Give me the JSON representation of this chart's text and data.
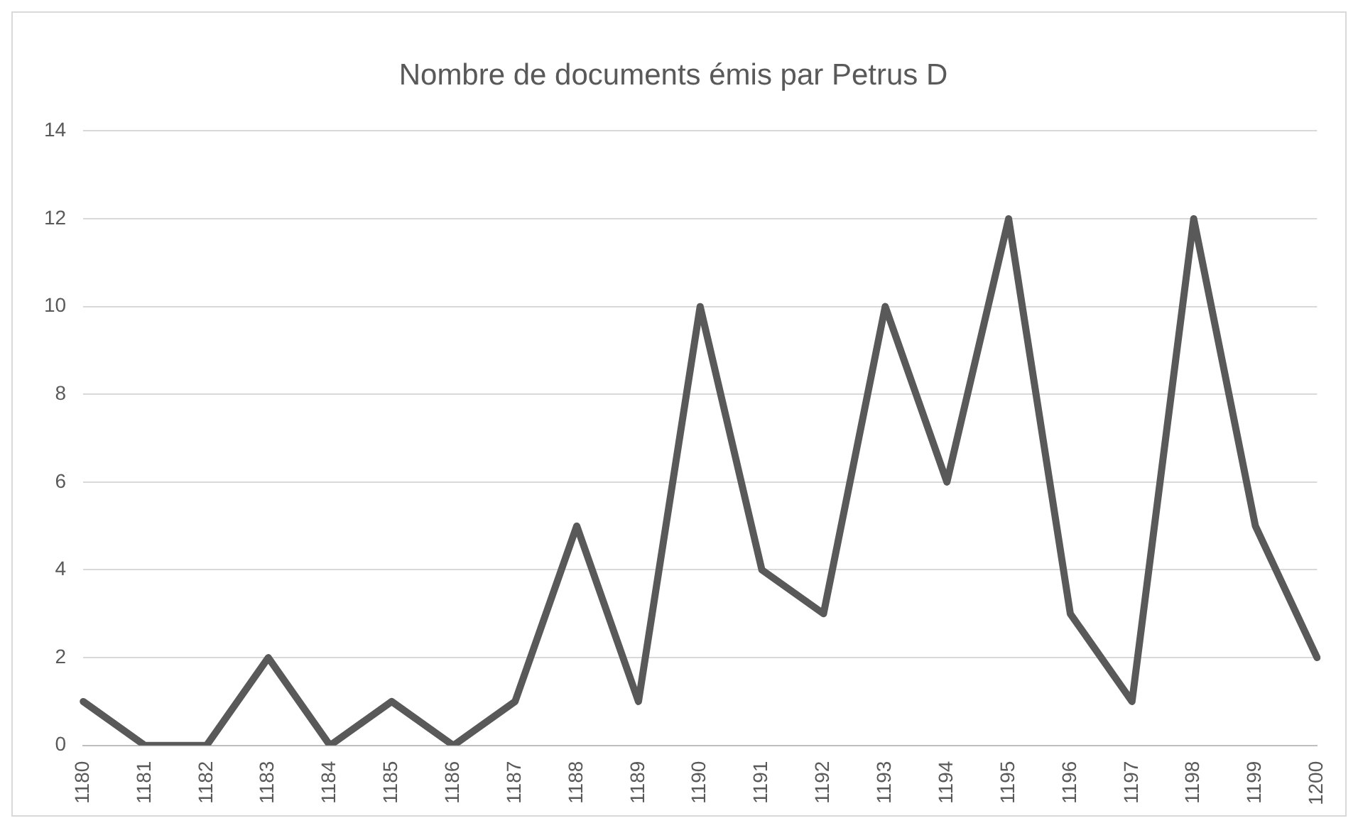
{
  "chart_data": {
    "type": "line",
    "title": "Nombre de documents émis par Petrus D",
    "categories": [
      "1180",
      "1181",
      "1182",
      "1183",
      "1184",
      "1185",
      "1186",
      "1187",
      "1188",
      "1189",
      "1190",
      "1191",
      "1192",
      "1193",
      "1194",
      "1195",
      "1196",
      "1197",
      "1198",
      "1199",
      "1200"
    ],
    "series": [
      {
        "color": "#595959",
        "values": [
          1,
          0,
          0,
          2,
          0,
          1,
          0,
          1,
          5,
          1,
          10,
          4,
          3,
          10,
          6,
          12,
          3,
          1,
          12,
          5,
          2
        ]
      }
    ],
    "ylim": [
      0,
      14
    ],
    "yticks": [
      0,
      2,
      4,
      6,
      8,
      10,
      12,
      14
    ],
    "grid": "y",
    "legend": false,
    "marker": "none",
    "line_style": "solid"
  }
}
